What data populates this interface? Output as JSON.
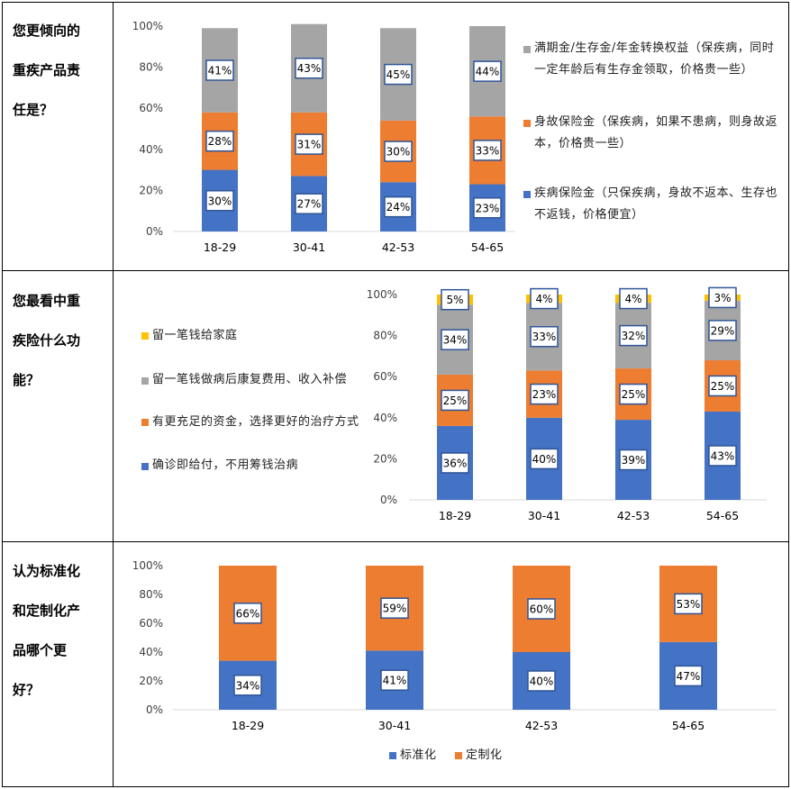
{
  "colors": {
    "blue": "#4472C4",
    "orange": "#ED7D31",
    "gray": "#A5A5A5",
    "yellow": "#FFC000"
  },
  "questions": [
    {
      "lines": [
        "您更倾向的",
        "重疾产品责",
        "任是？"
      ]
    },
    {
      "lines": [
        "您最看中重",
        "疾险什么功",
        "能？"
      ]
    },
    {
      "lines": [
        "认为标准化",
        "和定制化产",
        "品哪个更",
        "好？"
      ]
    }
  ],
  "chart_data": [
    {
      "type": "bar",
      "stacked": true,
      "categories": [
        "18-29",
        "30-41",
        "42-53",
        "54-65"
      ],
      "yticks": [
        "0%",
        "20%",
        "40%",
        "60%",
        "80%",
        "100%"
      ],
      "ylim": [
        0,
        100
      ],
      "series": [
        {
          "name": "疾病保险金（只保疾病，身故不返本、生存也不返钱，价格便宜）",
          "color": "blue",
          "values": [
            30,
            27,
            24,
            23
          ],
          "labels": [
            "30%",
            "27%",
            "24%",
            "23%"
          ]
        },
        {
          "name": "身故保险金（保疾病，如果不患病，则身故返本，价格贵一些）",
          "color": "orange",
          "values": [
            28,
            31,
            30,
            33
          ],
          "labels": [
            "28%",
            "31%",
            "30%",
            "33%"
          ]
        },
        {
          "name": "满期金/生存金/年金转换权益（保疾病，同时一定年龄后有生存金领取，价格贵一些）",
          "color": "gray",
          "values": [
            41,
            43,
            45,
            44
          ],
          "labels": [
            "41%",
            "43%",
            "45%",
            "44%"
          ]
        }
      ],
      "legend_position": "right"
    },
    {
      "type": "bar",
      "stacked": true,
      "categories": [
        "18-29",
        "30-41",
        "42-53",
        "54-65"
      ],
      "yticks": [
        "0%",
        "20%",
        "40%",
        "60%",
        "80%",
        "100%"
      ],
      "ylim": [
        0,
        100
      ],
      "series": [
        {
          "name": "确诊即给付，不用筹钱治病",
          "color": "blue",
          "values": [
            36,
            40,
            39,
            43
          ],
          "labels": [
            "36%",
            "40%",
            "39%",
            "43%"
          ]
        },
        {
          "name": "有更充足的资金，选择更好的治疗方式",
          "color": "orange",
          "values": [
            25,
            23,
            25,
            25
          ],
          "labels": [
            "25%",
            "23%",
            "25%",
            "25%"
          ]
        },
        {
          "name": "留一笔钱做病后康复费用、收入补偿",
          "color": "gray",
          "values": [
            34,
            33,
            32,
            29
          ],
          "labels": [
            "34%",
            "33%",
            "32%",
            "29%"
          ]
        },
        {
          "name": "留一笔钱给家庭",
          "color": "yellow",
          "values": [
            5,
            4,
            4,
            3
          ],
          "labels": [
            "5%",
            "4%",
            "4%",
            "3%"
          ]
        }
      ],
      "legend_position": "left"
    },
    {
      "type": "bar",
      "stacked": true,
      "categories": [
        "18-29",
        "30-41",
        "42-53",
        "54-65"
      ],
      "yticks": [
        "0%",
        "20%",
        "40%",
        "60%",
        "80%",
        "100%"
      ],
      "ylim": [
        0,
        100
      ],
      "series": [
        {
          "name": "标准化",
          "color": "blue",
          "values": [
            34,
            41,
            40,
            47
          ],
          "labels": [
            "34%",
            "41%",
            "40%",
            "47%"
          ]
        },
        {
          "name": "定制化",
          "color": "orange",
          "values": [
            66,
            59,
            60,
            53
          ],
          "labels": [
            "66%",
            "59%",
            "60%",
            "53%"
          ]
        }
      ],
      "legend_position": "bottom"
    }
  ]
}
